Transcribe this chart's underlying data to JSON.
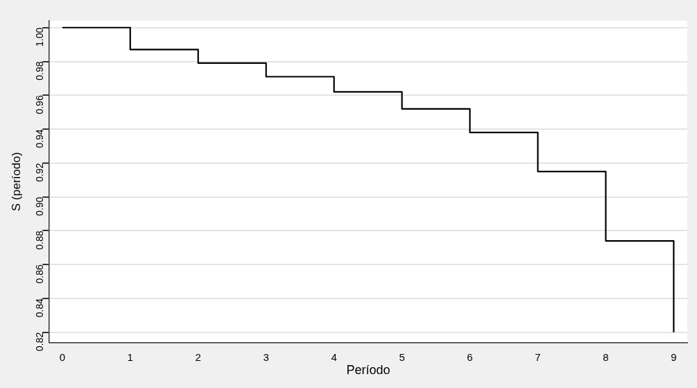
{
  "chart_data": {
    "type": "step",
    "xlabel": "Período",
    "ylabel": "S (período)",
    "x": [
      0,
      1,
      2,
      3,
      4,
      5,
      6,
      7,
      8,
      9
    ],
    "series": [
      {
        "color": "#000000",
        "values": [
          1.0,
          0.987,
          0.979,
          0.971,
          0.962,
          0.952,
          0.938,
          0.915,
          0.874,
          0.82
        ]
      }
    ],
    "xlim": [
      -0.19,
      9.2
    ],
    "xticks": [
      0,
      1,
      2,
      3,
      4,
      5,
      6,
      7,
      8,
      9
    ],
    "ylim": [
      0.814,
      1.004
    ],
    "yticks": [
      {
        "value": 0.82,
        "label": "0.82"
      },
      {
        "value": 0.84,
        "label": "0.84"
      },
      {
        "value": 0.86,
        "label": "0.86"
      },
      {
        "value": 0.88,
        "label": "0.88"
      },
      {
        "value": 0.9,
        "label": "0.90"
      },
      {
        "value": 0.92,
        "label": "0.92"
      },
      {
        "value": 0.94,
        "label": "0.94"
      },
      {
        "value": 0.96,
        "label": "0.96"
      },
      {
        "value": 0.98,
        "label": "0.98"
      },
      {
        "value": 1.0,
        "label": "1.00"
      }
    ],
    "grid": "y",
    "legend": false,
    "marker": "none",
    "line_style": "solid"
  }
}
